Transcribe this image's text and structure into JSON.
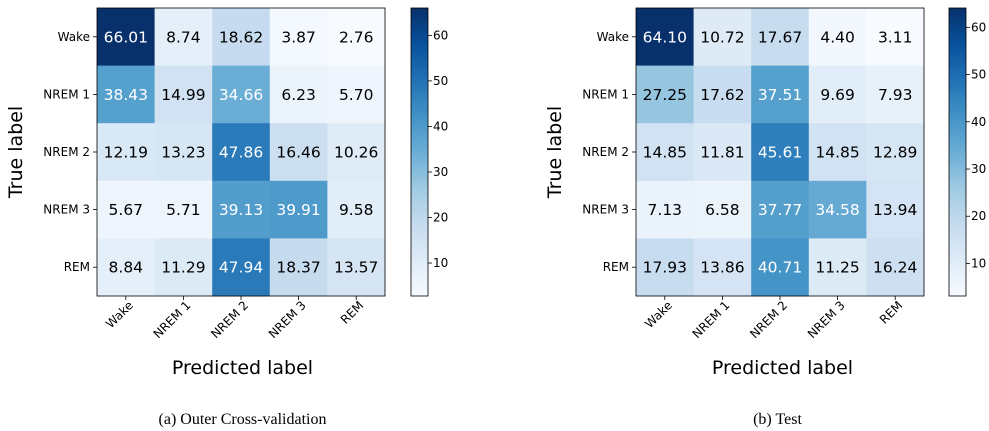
{
  "chart_data": [
    {
      "type": "heatmap",
      "caption": "(a) Outer Cross-validation",
      "xlabel": "Predicted label",
      "ylabel": "True label",
      "x_categories": [
        "Wake",
        "NREM 1",
        "NREM 2",
        "NREM 3",
        "REM"
      ],
      "y_categories": [
        "Wake",
        "NREM 1",
        "NREM 2",
        "NREM 3",
        "REM"
      ],
      "values": [
        [
          66.01,
          8.74,
          18.62,
          3.87,
          2.76
        ],
        [
          38.43,
          14.99,
          34.66,
          6.23,
          5.7
        ],
        [
          12.19,
          13.23,
          47.86,
          16.46,
          10.26
        ],
        [
          5.67,
          5.71,
          39.13,
          39.91,
          9.58
        ],
        [
          8.84,
          11.29,
          47.94,
          18.37,
          13.57
        ]
      ],
      "labels": [
        [
          "66.01",
          "8.74",
          "18.62",
          "3.87",
          "2.76"
        ],
        [
          "38.43",
          "14.99",
          "34.66",
          "6.23",
          "5.70"
        ],
        [
          "12.19",
          "13.23",
          "47.86",
          "16.46",
          "10.26"
        ],
        [
          "5.67",
          "5.71",
          "39.13",
          "39.91",
          "9.58"
        ],
        [
          "8.84",
          "11.29",
          "47.94",
          "18.37",
          "13.57"
        ]
      ],
      "colorbar": {
        "min": 2.76,
        "max": 66.01,
        "ticks": [
          "10",
          "20",
          "30",
          "40",
          "50",
          "60"
        ],
        "tick_values": [
          10,
          20,
          30,
          40,
          50,
          60
        ]
      },
      "colormap": "Blues"
    },
    {
      "type": "heatmap",
      "caption": "(b) Test",
      "xlabel": "Predicted label",
      "ylabel": "True label",
      "x_categories": [
        "Wake",
        "NREM 1",
        "NREM 2",
        "NREM 3",
        "REM"
      ],
      "y_categories": [
        "Wake",
        "NREM 1",
        "NREM 2",
        "NREM 3",
        "REM"
      ],
      "values": [
        [
          64.1,
          10.72,
          17.67,
          4.4,
          3.11
        ],
        [
          27.25,
          17.62,
          37.51,
          9.69,
          7.93
        ],
        [
          14.85,
          11.81,
          45.61,
          14.85,
          12.89
        ],
        [
          7.13,
          6.58,
          37.77,
          34.58,
          13.94
        ],
        [
          17.93,
          13.86,
          40.71,
          11.25,
          16.24
        ]
      ],
      "labels": [
        [
          "64.10",
          "10.72",
          "17.67",
          "4.40",
          "3.11"
        ],
        [
          "27.25",
          "17.62",
          "37.51",
          "9.69",
          "7.93"
        ],
        [
          "14.85",
          "11.81",
          "45.61",
          "14.85",
          "12.89"
        ],
        [
          "7.13",
          "6.58",
          "37.77",
          "34.58",
          "13.94"
        ],
        [
          "17.93",
          "13.86",
          "40.71",
          "11.25",
          "16.24"
        ]
      ],
      "colorbar": {
        "min": 3.11,
        "max": 64.1,
        "ticks": [
          "10",
          "20",
          "30",
          "40",
          "50",
          "60"
        ],
        "tick_values": [
          10,
          20,
          30,
          40,
          50,
          60
        ]
      },
      "colormap": "Blues"
    }
  ]
}
